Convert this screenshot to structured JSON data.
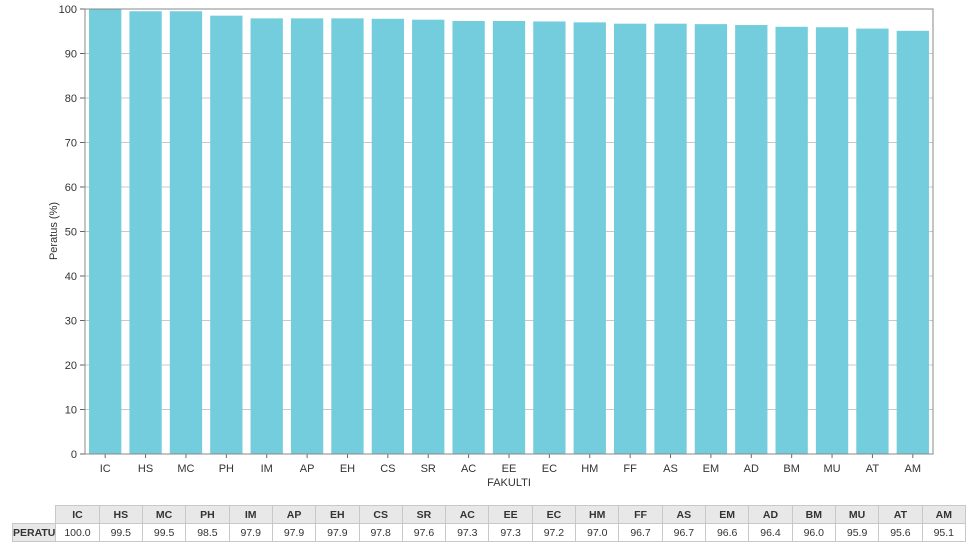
{
  "chart_data": {
    "type": "bar",
    "categories": [
      "IC",
      "HS",
      "MC",
      "PH",
      "IM",
      "AP",
      "EH",
      "CS",
      "SR",
      "AC",
      "EE",
      "EC",
      "HM",
      "FF",
      "AS",
      "EM",
      "AD",
      "BM",
      "MU",
      "AT",
      "AM"
    ],
    "series": [
      {
        "name": "PERATUS",
        "values": [
          100.0,
          99.5,
          99.5,
          98.5,
          97.9,
          97.9,
          97.9,
          97.8,
          97.6,
          97.3,
          97.3,
          97.2,
          97.0,
          96.7,
          96.7,
          96.6,
          96.4,
          96.0,
          95.9,
          95.6,
          95.1
        ]
      }
    ],
    "value_labels": [
      "100.0",
      "99.5",
      "99.5",
      "98.5",
      "97.9",
      "97.9",
      "97.9",
      "97.8",
      "97.6",
      "97.3",
      "97.3",
      "97.2",
      "97.0",
      "96.7",
      "96.7",
      "96.6",
      "96.4",
      "96.0",
      "95.9",
      "95.6",
      "95.1"
    ],
    "title": "",
    "xlabel": "FAKULTI",
    "ylabel": "Peratus (%)",
    "ylim": [
      0,
      100
    ],
    "yticks": [
      "0",
      "10",
      "20",
      "30",
      "40",
      "50",
      "60",
      "70",
      "80",
      "90",
      "100"
    ],
    "grid": true,
    "bar_color": "#74cddd",
    "table_row_label": "PERATUS"
  }
}
